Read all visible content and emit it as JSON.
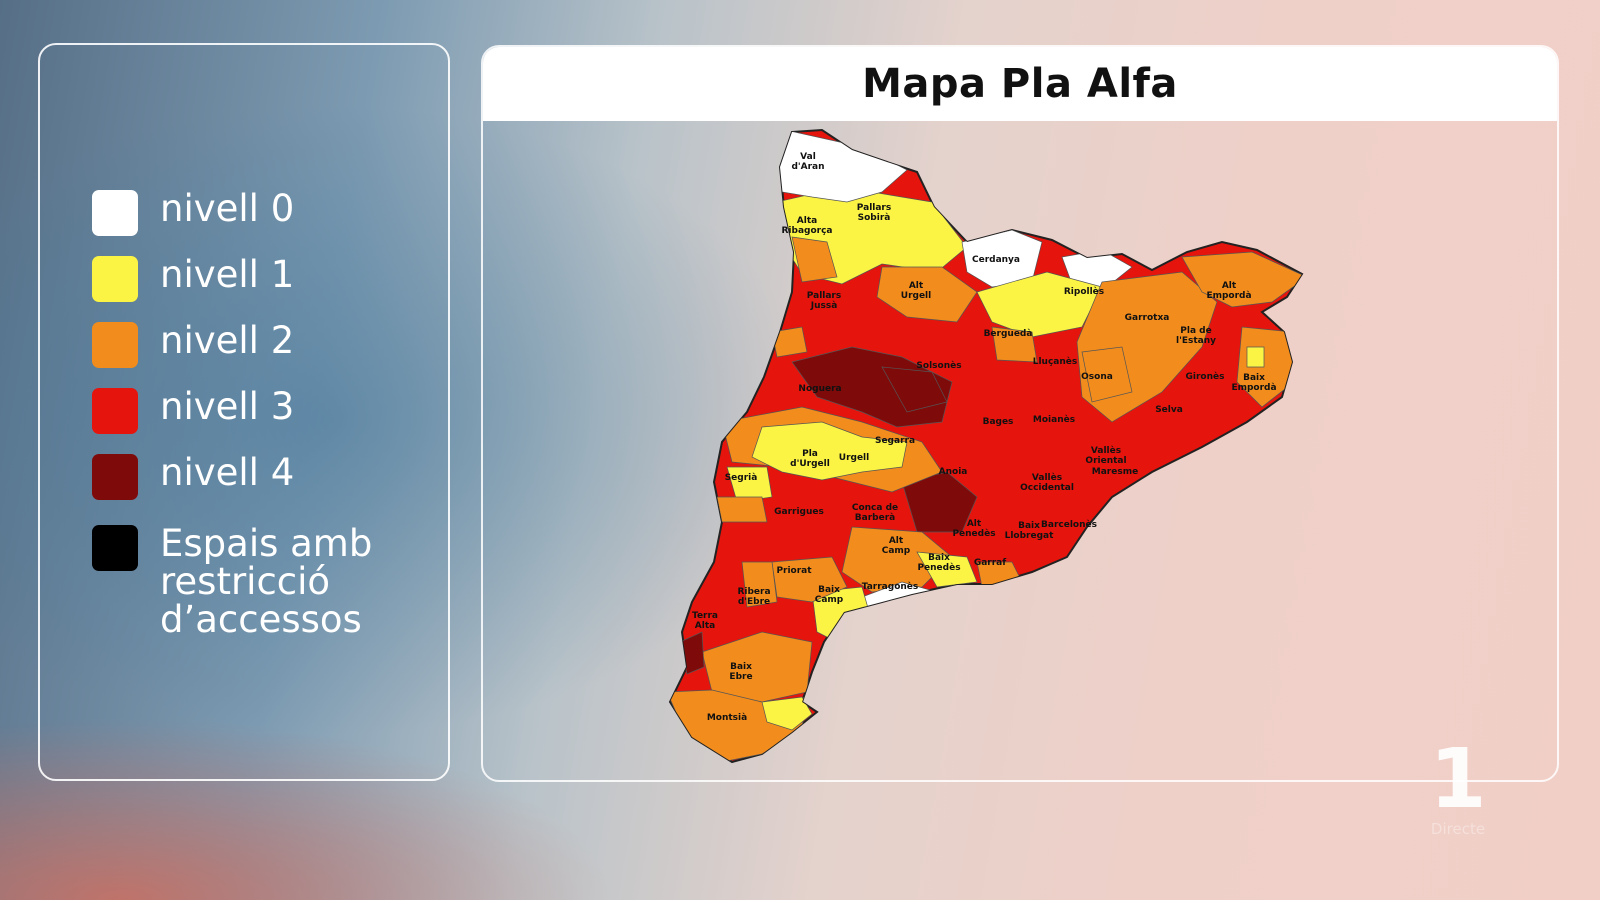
{
  "title": "Mapa Pla Alfa",
  "legend": [
    {
      "label": "nivell 0",
      "color": "#ffffff"
    },
    {
      "label": "nivell 1",
      "color": "#fbf444"
    },
    {
      "label": "nivell 2",
      "color": "#f28c1c"
    },
    {
      "label": "nivell 3",
      "color": "#e5140d"
    },
    {
      "label": "nivell 4",
      "color": "#7f0a0a"
    },
    {
      "label": "Espais amb restricció d’accessos",
      "color": "#000000"
    }
  ],
  "regions": [
    "Val d'Aran",
    "Alta Ribagorça",
    "Pallars Sobirà",
    "Cerdanya",
    "Ripollès",
    "Alt Empordà",
    "Pallars Jussà",
    "Alt Urgell",
    "Berguedà",
    "Garrotxa",
    "Pla de l'Estany",
    "Solsonès",
    "Lluçanès",
    "Osona",
    "Gironès",
    "Baix Empordà",
    "Noguera",
    "Selva",
    "Bages",
    "Moianès",
    "Segarra",
    "Pla d'Urgell",
    "Urgell",
    "Vallès Oriental",
    "Segrià",
    "Anoia",
    "Vallès Occidental",
    "Maresme",
    "Garrigues",
    "Conca de Barberà",
    "Alt Penedès",
    "Baix Llobregat",
    "Barcelonès",
    "Alt Camp",
    "Priorat",
    "Baix Penedès",
    "Garraf",
    "Ribera d'Ebre",
    "Baix Camp",
    "Tarragonès",
    "Terra Alta",
    "Baix Ebre",
    "Montsià"
  ],
  "logo": {
    "digit": "1",
    "subtitle": "Directe"
  }
}
